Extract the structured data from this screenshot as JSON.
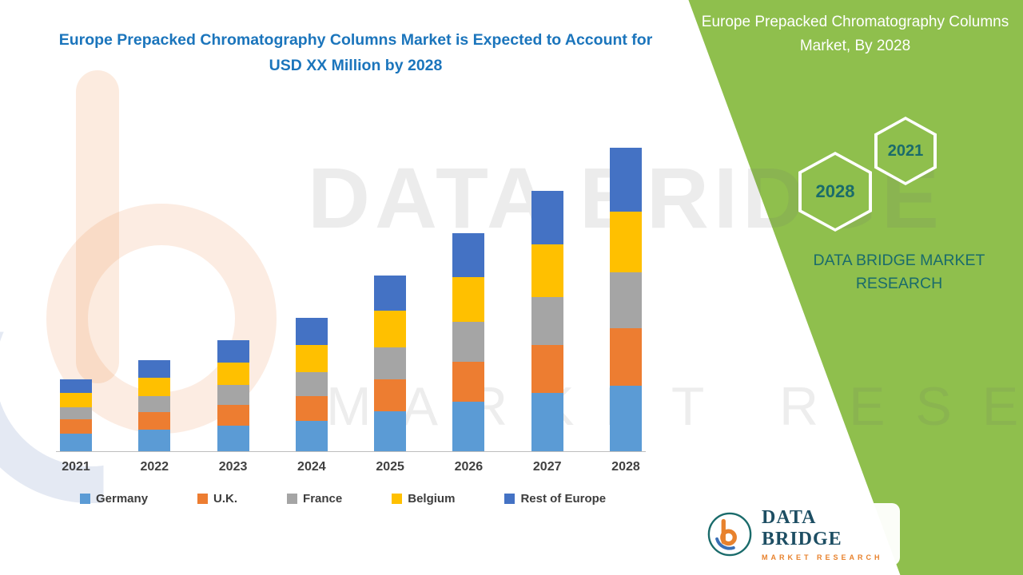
{
  "title": "Europe Prepacked Chromatography Columns Market is Expected to Account for USD XX Million by 2028",
  "side_panel": {
    "heading": "Europe Prepacked Chromatography Columns Market, By 2028",
    "hexagons": [
      {
        "label": "2028"
      },
      {
        "label": "2021"
      }
    ],
    "brand_text": "DATA BRIDGE MARKET RESEARCH"
  },
  "watermark": {
    "line1": "DATA BRIDGE",
    "line2": "MARKET RESEARCH"
  },
  "footer_logo": {
    "name": "DATA BRIDGE",
    "tagline": "MARKET RESEARCH"
  },
  "colors": {
    "panel_green": "#8FBF4D",
    "title_blue": "#1B75BC",
    "teal_text": "#1A6B6B"
  },
  "chart_data": {
    "type": "bar",
    "stacked": true,
    "title": "Europe Prepacked Chromatography Columns Market is Expected to Account for USD XX Million by 2028",
    "categories": [
      "2021",
      "2022",
      "2023",
      "2024",
      "2025",
      "2026",
      "2027",
      "2028"
    ],
    "series": [
      {
        "name": "Germany",
        "color": "#5B9BD5",
        "values": [
          22,
          27,
          32,
          38,
          50,
          62,
          73,
          82
        ]
      },
      {
        "name": "U.K.",
        "color": "#ED7D31",
        "values": [
          18,
          22,
          26,
          31,
          40,
          50,
          60,
          72
        ]
      },
      {
        "name": "France",
        "color": "#A5A5A5",
        "values": [
          15,
          20,
          25,
          30,
          40,
          50,
          60,
          70
        ]
      },
      {
        "name": "Belgium",
        "color": "#FFC000",
        "values": [
          18,
          23,
          28,
          34,
          46,
          56,
          66,
          76
        ]
      },
      {
        "name": "Rest of Europe",
        "color": "#4472C4",
        "values": [
          17,
          22,
          28,
          34,
          44,
          55,
          67,
          80
        ]
      }
    ],
    "xlabel": "",
    "ylabel": "",
    "ylim": [
      0,
      400
    ],
    "y_axis_visible": false,
    "grid": false,
    "legend_position": "bottom",
    "units": "USD Million (exact values shown as XX, heights are relative estimates)"
  }
}
